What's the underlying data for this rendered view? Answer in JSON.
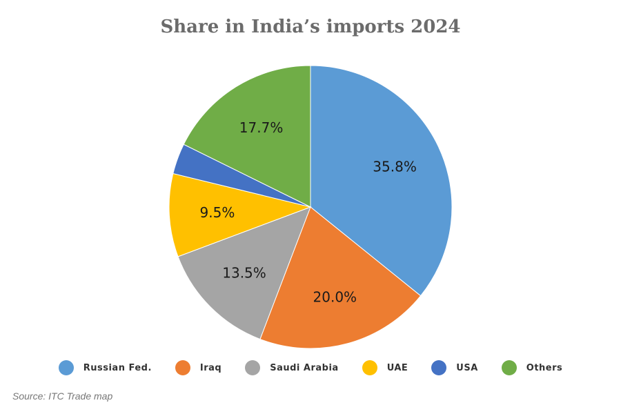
{
  "chart_data": {
    "type": "pie",
    "title": "Share in India’s imports 2024",
    "source": "Source: ITC Trade map",
    "legend_position": "bottom",
    "slices": [
      {
        "name": "Russian Fed.",
        "value": 35.8,
        "label": "35.8%",
        "color": "#5b9bd5"
      },
      {
        "name": "Iraq",
        "value": 20.0,
        "label": "20.0%",
        "color": "#ed7d31"
      },
      {
        "name": "Saudi Arabia",
        "value": 13.5,
        "label": "13.5%",
        "color": "#a5a5a5"
      },
      {
        "name": "UAE",
        "value": 9.5,
        "label": "9.5%",
        "color": "#ffc000"
      },
      {
        "name": "USA",
        "value": 3.5,
        "label": "",
        "color": "#4472c4"
      },
      {
        "name": "Others",
        "value": 17.7,
        "label": "17.7%",
        "color": "#70ad47"
      }
    ]
  }
}
